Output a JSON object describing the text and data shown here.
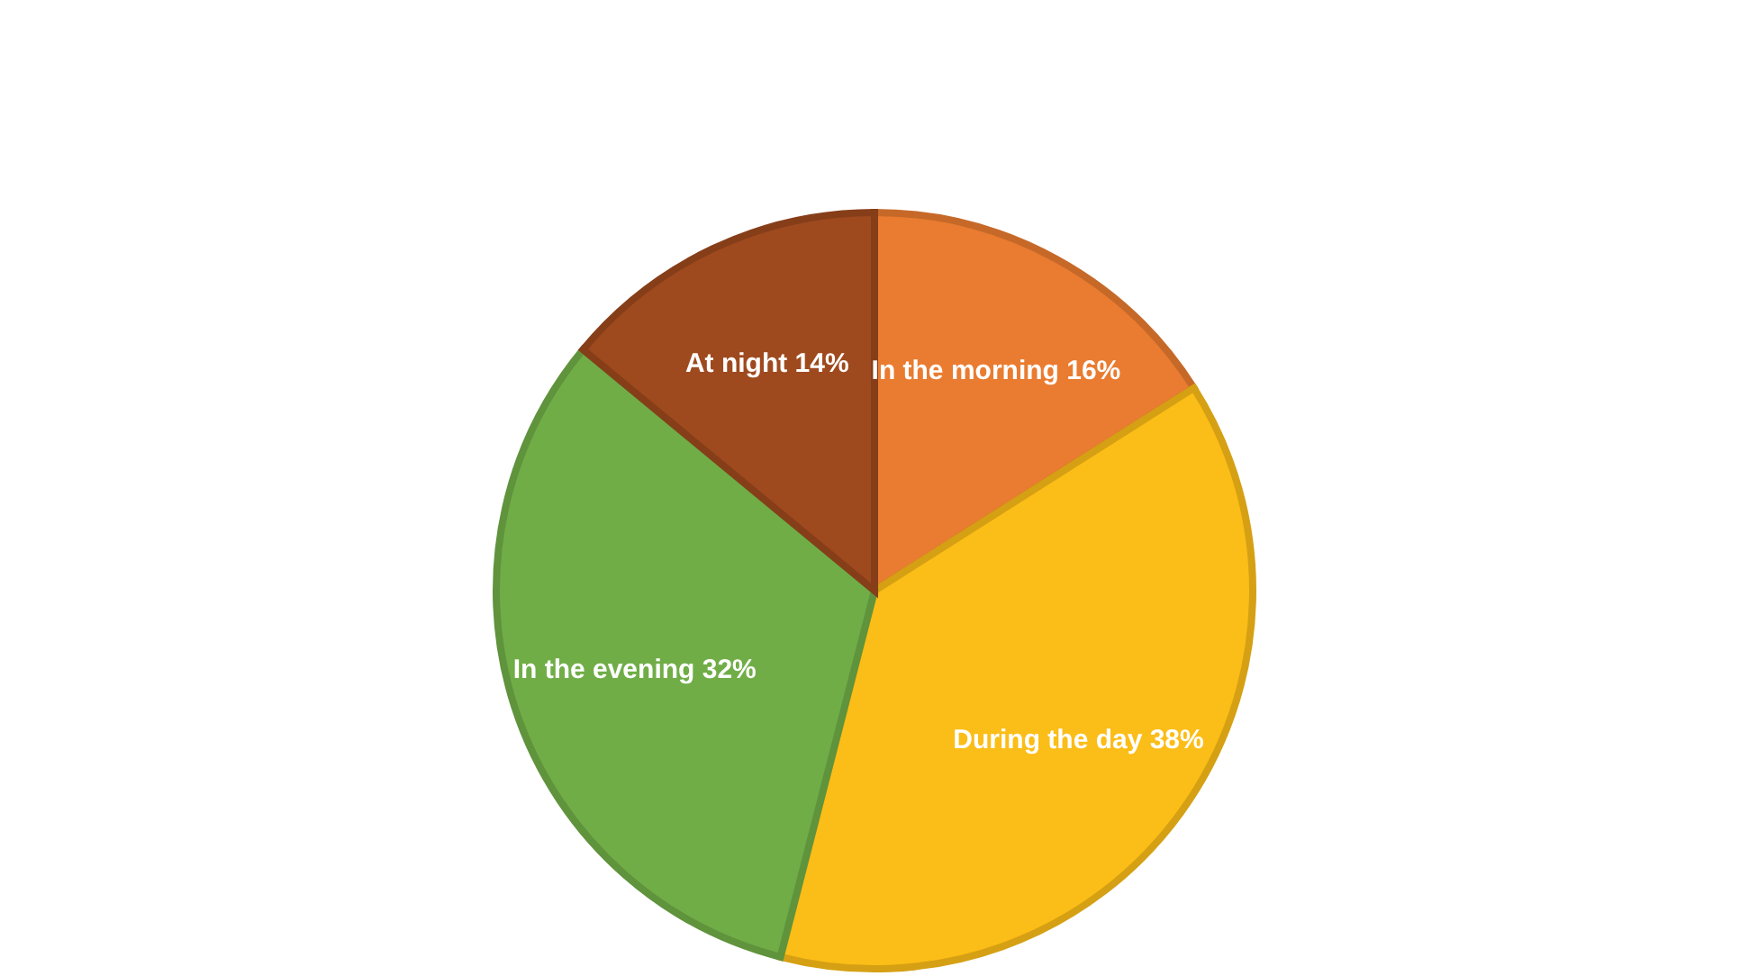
{
  "chart_data": {
    "type": "pie",
    "categories": [
      "In the morning",
      "During the day",
      "In the evening",
      "At night"
    ],
    "values": [
      16,
      38,
      32,
      14
    ],
    "value_labels": [
      "16%",
      "38%",
      "32%",
      "14%"
    ],
    "colors": [
      "#e97c30",
      "#fbbd17",
      "#70ad47",
      "#9e4a1e"
    ],
    "legend": false
  }
}
